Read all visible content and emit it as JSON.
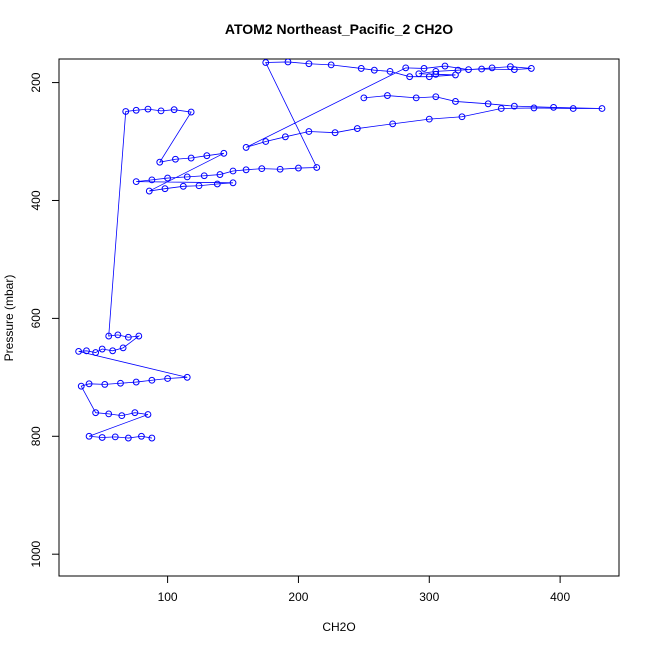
{
  "chart_data": {
    "type": "scatter",
    "title": "ATOM2 Northeast_Pacific_2 CH2O",
    "xlabel": "CH2O",
    "ylabel": "Pressure (mbar)",
    "xlim": [
      17,
      445
    ],
    "ylim": [
      1037,
      160
    ],
    "y_reversed": true,
    "x_ticks": [
      100,
      200,
      300,
      400
    ],
    "y_ticks": [
      200,
      400,
      600,
      800,
      1000
    ],
    "grid": false,
    "series": [
      {
        "color": "#0000ff",
        "marker": "open-circle",
        "connected": true,
        "points": [
          [
            250,
            226
          ],
          [
            268,
            222
          ],
          [
            290,
            226
          ],
          [
            305,
            224
          ],
          [
            320,
            232
          ],
          [
            345,
            236
          ],
          [
            365,
            240
          ],
          [
            395,
            242
          ],
          [
            432,
            244
          ],
          [
            410,
            244
          ],
          [
            380,
            243
          ],
          [
            355,
            244
          ],
          [
            325,
            258
          ],
          [
            300,
            262
          ],
          [
            272,
            270
          ],
          [
            245,
            278
          ],
          [
            228,
            285
          ],
          [
            208,
            283
          ],
          [
            190,
            292
          ],
          [
            175,
            300
          ],
          [
            160,
            310
          ],
          [
            282,
            175
          ],
          [
            296,
            176
          ],
          [
            312,
            172
          ],
          [
            330,
            178
          ],
          [
            348,
            175
          ],
          [
            362,
            173
          ],
          [
            378,
            176
          ],
          [
            365,
            178
          ],
          [
            340,
            177
          ],
          [
            322,
            179
          ],
          [
            305,
            181
          ],
          [
            292,
            185
          ],
          [
            305,
            186
          ],
          [
            320,
            187
          ],
          [
            300,
            190
          ],
          [
            285,
            190
          ],
          [
            270,
            181
          ],
          [
            258,
            179
          ],
          [
            248,
            176
          ],
          [
            225,
            170
          ],
          [
            208,
            168
          ],
          [
            192,
            165
          ],
          [
            175,
            166
          ],
          [
            214,
            344
          ],
          [
            200,
            345
          ],
          [
            186,
            347
          ],
          [
            172,
            346
          ],
          [
            160,
            348
          ],
          [
            150,
            350
          ],
          [
            140,
            356
          ],
          [
            128,
            358
          ],
          [
            115,
            360
          ],
          [
            100,
            362
          ],
          [
            88,
            365
          ],
          [
            76,
            368
          ],
          [
            150,
            370
          ],
          [
            138,
            372
          ],
          [
            124,
            375
          ],
          [
            112,
            376
          ],
          [
            98,
            380
          ],
          [
            86,
            384
          ],
          [
            143,
            320
          ],
          [
            130,
            324
          ],
          [
            118,
            328
          ],
          [
            106,
            330
          ],
          [
            94,
            335
          ],
          [
            118,
            250
          ],
          [
            105,
            246
          ],
          [
            95,
            248
          ],
          [
            85,
            245
          ],
          [
            76,
            247
          ],
          [
            68,
            249
          ],
          [
            55,
            630
          ],
          [
            62,
            628
          ],
          [
            70,
            632
          ],
          [
            78,
            630
          ],
          [
            66,
            650
          ],
          [
            58,
            655
          ],
          [
            50,
            652
          ],
          [
            45,
            658
          ],
          [
            38,
            655
          ],
          [
            32,
            656
          ],
          [
            115,
            700
          ],
          [
            100,
            702
          ],
          [
            88,
            705
          ],
          [
            76,
            708
          ],
          [
            64,
            710
          ],
          [
            52,
            712
          ],
          [
            40,
            711
          ],
          [
            34,
            715
          ],
          [
            45,
            760
          ],
          [
            55,
            762
          ],
          [
            65,
            765
          ],
          [
            75,
            760
          ],
          [
            85,
            763
          ],
          [
            40,
            800
          ],
          [
            50,
            802
          ],
          [
            60,
            801
          ],
          [
            70,
            803
          ],
          [
            80,
            800
          ],
          [
            88,
            803
          ]
        ]
      }
    ]
  }
}
